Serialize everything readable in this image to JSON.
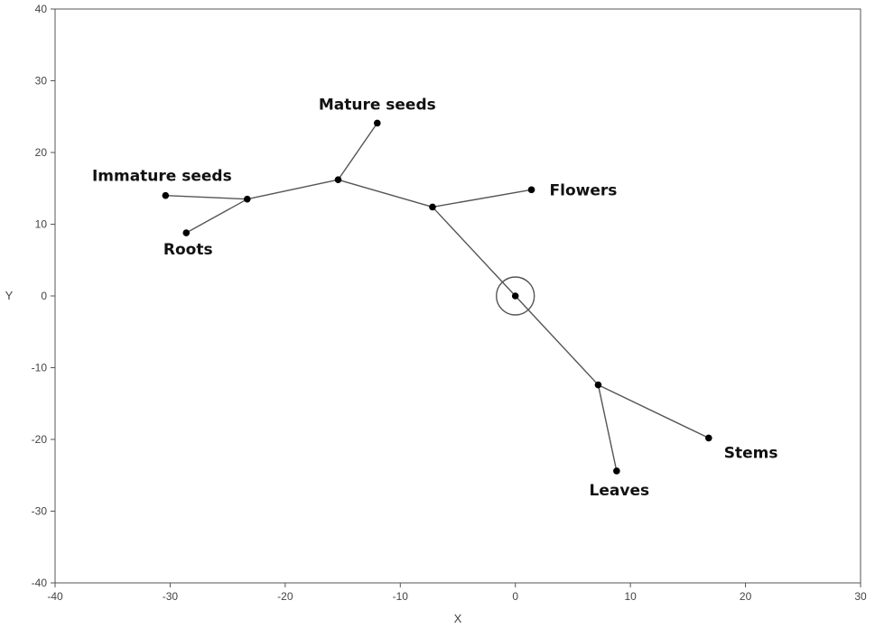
{
  "chart_data": {
    "type": "scatter",
    "title": "",
    "xlabel": "X",
    "ylabel": "Y",
    "xlim": [
      -40,
      30
    ],
    "ylim": [
      -40,
      40
    ],
    "x_ticks": [
      -40,
      -30,
      -20,
      -10,
      0,
      10,
      20,
      30
    ],
    "y_ticks": [
      -40,
      -30,
      -20,
      -10,
      0,
      10,
      20,
      30,
      40
    ],
    "x_tick_labels": [
      "-40",
      "-30",
      "-20",
      "-10",
      "0",
      "10",
      "20",
      "30"
    ],
    "y_tick_labels": [
      "-40",
      "-30",
      "-20",
      "-10",
      "0",
      "10",
      "20",
      "30",
      "40"
    ],
    "grid": false,
    "root_node": "n0",
    "nodes": [
      {
        "id": "n0",
        "x": 0.0,
        "y": 0.0,
        "label": ""
      },
      {
        "id": "n1",
        "x": -7.2,
        "y": 12.4,
        "label": ""
      },
      {
        "id": "n2",
        "x": -15.4,
        "y": 16.2,
        "label": ""
      },
      {
        "id": "n3",
        "x": -23.3,
        "y": 13.5,
        "label": ""
      },
      {
        "id": "n4",
        "x": 7.2,
        "y": -12.4,
        "label": ""
      },
      {
        "id": "mature",
        "x": -12.0,
        "y": 24.1,
        "label": "Mature seeds"
      },
      {
        "id": "immature",
        "x": -30.4,
        "y": 14.0,
        "label": "Immature seeds"
      },
      {
        "id": "roots",
        "x": -28.6,
        "y": 8.8,
        "label": "Roots"
      },
      {
        "id": "flowers",
        "x": 1.4,
        "y": 14.8,
        "label": "Flowers"
      },
      {
        "id": "stems",
        "x": 16.8,
        "y": -19.8,
        "label": "Stems"
      },
      {
        "id": "leaves",
        "x": 8.8,
        "y": -24.4,
        "label": "Leaves"
      }
    ],
    "edges": [
      [
        "n0",
        "n1"
      ],
      [
        "n1",
        "n2"
      ],
      [
        "n2",
        "n3"
      ],
      [
        "n3",
        "immature"
      ],
      [
        "n3",
        "roots"
      ],
      [
        "n2",
        "mature"
      ],
      [
        "n1",
        "flowers"
      ],
      [
        "n0",
        "n4"
      ],
      [
        "n4",
        "stems"
      ],
      [
        "n4",
        "leaves"
      ]
    ]
  }
}
